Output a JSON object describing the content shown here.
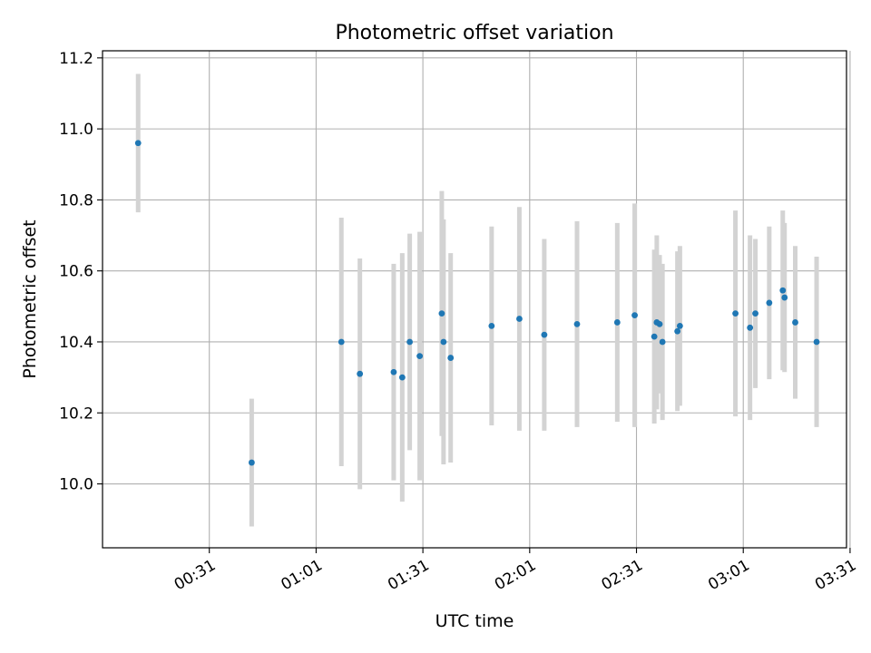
{
  "chart_data": {
    "type": "scatter",
    "title": "Photometric offset variation",
    "xlabel": "UTC time",
    "ylabel": "Photometric offset",
    "x_unit": "minutes",
    "xlim": [
      0,
      209
    ],
    "ylim": [
      9.82,
      11.22
    ],
    "grid": true,
    "x_tick_values": [
      30,
      60,
      90,
      120,
      150,
      180,
      210
    ],
    "x_tick_labels": [
      "00:31",
      "01:01",
      "01:31",
      "02:01",
      "02:31",
      "03:01",
      "03:31"
    ],
    "y_ticks": [
      10.0,
      10.2,
      10.4,
      10.6,
      10.8,
      11.0,
      11.2
    ],
    "y_tick_labels": [
      "10.0",
      "10.2",
      "10.4",
      "10.6",
      "10.8",
      "11.0",
      "11.2"
    ],
    "colors": {
      "point": "#1f77b4",
      "errorbar": "#d3d3d3",
      "grid": "#b0b0b0"
    },
    "points": [
      {
        "x": 10.0,
        "y": 10.96,
        "err": 0.195
      },
      {
        "x": 41.9,
        "y": 10.06,
        "err": 0.18
      },
      {
        "x": 67.1,
        "y": 10.4,
        "err": 0.35
      },
      {
        "x": 72.3,
        "y": 10.31,
        "err": 0.325
      },
      {
        "x": 81.8,
        "y": 10.315,
        "err": 0.305
      },
      {
        "x": 84.2,
        "y": 10.3,
        "err": 0.35
      },
      {
        "x": 86.3,
        "y": 10.4,
        "err": 0.305
      },
      {
        "x": 89.1,
        "y": 10.36,
        "err": 0.35
      },
      {
        "x": 95.3,
        "y": 10.48,
        "err": 0.345
      },
      {
        "x": 95.8,
        "y": 10.4,
        "err": 0.345
      },
      {
        "x": 97.8,
        "y": 10.355,
        "err": 0.295
      },
      {
        "x": 109.3,
        "y": 10.445,
        "err": 0.28
      },
      {
        "x": 117.1,
        "y": 10.465,
        "err": 0.315
      },
      {
        "x": 124.1,
        "y": 10.42,
        "err": 0.27
      },
      {
        "x": 133.3,
        "y": 10.45,
        "err": 0.29
      },
      {
        "x": 144.6,
        "y": 10.455,
        "err": 0.28
      },
      {
        "x": 149.5,
        "y": 10.475,
        "err": 0.315
      },
      {
        "x": 155.0,
        "y": 10.415,
        "err": 0.245
      },
      {
        "x": 155.7,
        "y": 10.455,
        "err": 0.245
      },
      {
        "x": 156.5,
        "y": 10.45,
        "err": 0.195
      },
      {
        "x": 157.3,
        "y": 10.4,
        "err": 0.22
      },
      {
        "x": 161.5,
        "y": 10.43,
        "err": 0.225
      },
      {
        "x": 162.2,
        "y": 10.445,
        "err": 0.225
      },
      {
        "x": 177.8,
        "y": 10.48,
        "err": 0.29
      },
      {
        "x": 181.9,
        "y": 10.44,
        "err": 0.26
      },
      {
        "x": 183.4,
        "y": 10.48,
        "err": 0.21
      },
      {
        "x": 187.3,
        "y": 10.51,
        "err": 0.215
      },
      {
        "x": 191.1,
        "y": 10.545,
        "err": 0.225
      },
      {
        "x": 191.6,
        "y": 10.525,
        "err": 0.21
      },
      {
        "x": 194.6,
        "y": 10.455,
        "err": 0.215
      },
      {
        "x": 200.6,
        "y": 10.4,
        "err": 0.24
      }
    ]
  }
}
